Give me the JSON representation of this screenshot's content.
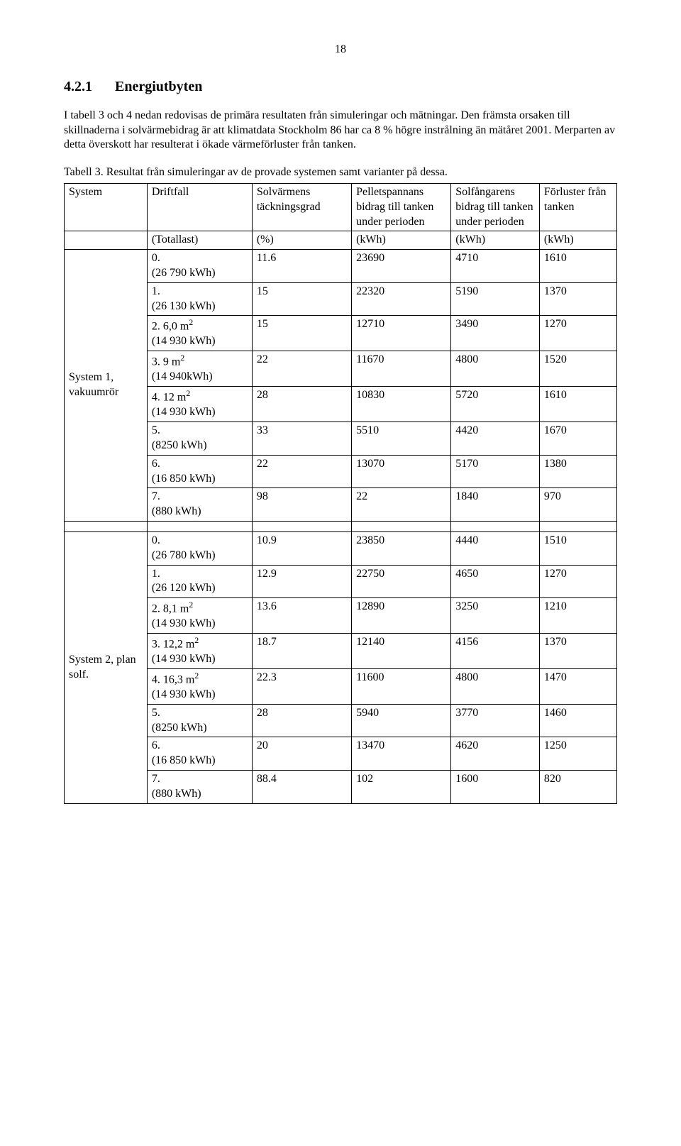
{
  "page_number": "18",
  "heading": {
    "num": "4.2.1",
    "title": "Energiutbyten"
  },
  "para1": "I tabell 3 och 4 nedan redovisas de primära resultaten från simuleringar och mätningar. Den främsta orsaken till skillnaderna i solvärmebidrag är att klimatdata Stockholm 86 har ca 8 % högre instrålning än mätåret 2001. Merparten av detta överskott har resulterat i ökade värmeförluster från tanken.",
  "caption": "Tabell 3. Resultat från simuleringar av de provade systemen samt varianter på dessa.",
  "headers": {
    "c1": "System",
    "c2": "Driftfall",
    "c3": "Solvärmens täckningsgrad",
    "c4": "Pelletspannans bidrag till tanken under perioden",
    "c5": "Solfångarens bidrag till tanken under perioden",
    "c6": "Förluster från tanken"
  },
  "unitrow": {
    "c2": "(Totallast)",
    "c3": "(%)",
    "c4": "(kWh)",
    "c5": "(kWh)",
    "c6": "(kWh)"
  },
  "sys1": {
    "label": "System 1, vakuumrör",
    "rows": [
      {
        "d": "0.",
        "dl": "(26 790 kWh)",
        "v": [
          "11.6",
          "23690",
          "4710",
          "1610"
        ]
      },
      {
        "d": "1.",
        "dl": "(26 130 kWh)",
        "v": [
          "15",
          "22320",
          "5190",
          "1370"
        ]
      },
      {
        "d": "2. 6,0 m",
        "sup": "2",
        "dl": "(14 930 kWh)",
        "v": [
          "15",
          "12710",
          "3490",
          "1270"
        ]
      },
      {
        "d": "3. 9 m",
        "sup": "2",
        "dl": "(14 940kWh)",
        "v": [
          "22",
          "11670",
          "4800",
          "1520"
        ]
      },
      {
        "d": "4. 12 m",
        "sup": "2",
        "dl": "(14 930 kWh)",
        "v": [
          "28",
          "10830",
          "5720",
          "1610"
        ]
      },
      {
        "d": "5.",
        "dl": "(8250 kWh)",
        "v": [
          "33",
          "5510",
          "4420",
          "1670"
        ]
      },
      {
        "d": "6.",
        "dl": "(16 850 kWh)",
        "v": [
          "22",
          "13070",
          "5170",
          "1380"
        ]
      },
      {
        "d": "7.",
        "dl": "(880 kWh)",
        "v": [
          "98",
          "22",
          "1840",
          "970"
        ]
      }
    ]
  },
  "sys2": {
    "label": "System 2, plan solf.",
    "rows": [
      {
        "d": "0.",
        "dl": "(26 780 kWh)",
        "v": [
          "10.9",
          "23850",
          "4440",
          "1510"
        ]
      },
      {
        "d": "1.",
        "dl": "(26 120 kWh)",
        "v": [
          "12.9",
          "22750",
          "4650",
          "1270"
        ]
      },
      {
        "d": "2. 8,1 m",
        "sup": "2",
        "dl": "(14 930 kWh)",
        "v": [
          "13.6",
          "12890",
          "3250",
          "1210"
        ]
      },
      {
        "d": "3. 12,2 m",
        "sup": "2",
        "dl": "(14 930 kWh)",
        "v": [
          "18.7",
          "12140",
          "4156",
          "1370"
        ]
      },
      {
        "d": "4. 16,3 m",
        "sup": "2",
        "dl": "(14 930 kWh)",
        "v": [
          "22.3",
          "11600",
          "4800",
          "1470"
        ]
      },
      {
        "d": "5.",
        "dl": "(8250 kWh)",
        "v": [
          "28",
          "5940",
          "3770",
          "1460"
        ]
      },
      {
        "d": "6.",
        "dl": "(16 850 kWh)",
        "v": [
          "20",
          "13470",
          "4620",
          "1250"
        ]
      },
      {
        "d": "7.",
        "dl": "(880 kWh)",
        "v": [
          "88.4",
          "102",
          "1600",
          "820"
        ]
      }
    ]
  }
}
